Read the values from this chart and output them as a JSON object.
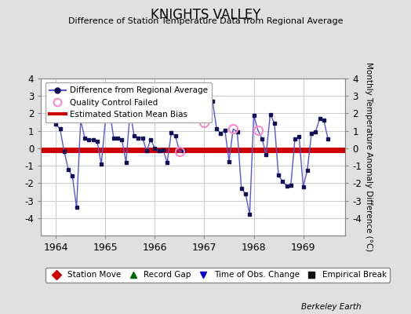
{
  "title": "KNIGHTS VALLEY",
  "subtitle": "Difference of Station Temperature Data from Regional Average",
  "ylabel": "Monthly Temperature Anomaly Difference (°C)",
  "xlabel_bottom": "Berkeley Earth",
  "xlim": [
    1963.7,
    1969.85
  ],
  "ylim": [
    -5,
    4
  ],
  "yticks": [
    -4,
    -3,
    -2,
    -1,
    0,
    1,
    2,
    3,
    4
  ],
  "xticks": [
    1964,
    1965,
    1966,
    1967,
    1968,
    1969
  ],
  "bias_value": -0.08,
  "line_color": "#5555dd",
  "dot_color": "#111155",
  "qc_color": "#ff88cc",
  "bias_color": "#cc0000",
  "bg_color": "#e0e0e0",
  "plot_bg_color": "#ffffff",
  "time_series": [
    1964.0,
    1964.083,
    1964.167,
    1964.25,
    1964.333,
    1964.417,
    1964.5,
    1964.583,
    1964.667,
    1964.75,
    1964.833,
    1964.917,
    1965.0,
    1965.083,
    1965.167,
    1965.25,
    1965.333,
    1965.417,
    1965.5,
    1965.583,
    1965.667,
    1965.75,
    1965.833,
    1965.917,
    1966.0,
    1966.083,
    1966.167,
    1966.25,
    1966.333,
    1966.417,
    1966.5,
    1966.583,
    1966.667,
    1966.75,
    1966.833,
    1966.917,
    1967.0,
    1967.083,
    1967.167,
    1967.25,
    1967.333,
    1967.417,
    1967.5,
    1967.583,
    1967.667,
    1967.75,
    1967.833,
    1967.917,
    1968.0,
    1968.083,
    1968.167,
    1968.25,
    1968.333,
    1968.417,
    1968.5,
    1968.583,
    1968.667,
    1968.75,
    1968.833,
    1968.917,
    1969.0,
    1969.083,
    1969.167,
    1969.25,
    1969.333,
    1969.417,
    1969.5
  ],
  "values": [
    1.4,
    1.1,
    -0.2,
    -1.2,
    -1.6,
    -3.4,
    1.6,
    0.6,
    0.5,
    0.5,
    0.4,
    -0.9,
    1.6,
    2.2,
    0.6,
    0.6,
    0.5,
    -0.8,
    2.1,
    0.7,
    0.6,
    0.6,
    -0.15,
    0.5,
    0.0,
    -0.15,
    -0.1,
    -0.8,
    0.9,
    0.7,
    -0.2,
    -0.15,
    null,
    null,
    null,
    null,
    1.5,
    1.8,
    2.7,
    1.1,
    0.85,
    1.05,
    -0.75,
    1.1,
    0.95,
    -2.3,
    -2.6,
    -3.8,
    1.9,
    1.05,
    0.55,
    -0.35,
    1.95,
    1.45,
    -1.55,
    -1.9,
    -2.15,
    -2.1,
    0.55,
    0.65,
    -2.2,
    -1.25,
    0.85,
    0.95,
    1.7,
    1.6,
    0.55
  ],
  "qc_failed_indices": [
    13,
    30,
    36,
    43,
    49
  ],
  "legend2_entries": [
    {
      "label": "Station Move",
      "color": "#cc0000",
      "marker": "D"
    },
    {
      "label": "Record Gap",
      "color": "#006600",
      "marker": "^"
    },
    {
      "label": "Time of Obs. Change",
      "color": "#0000cc",
      "marker": "v"
    },
    {
      "label": "Empirical Break",
      "color": "#111111",
      "marker": "s"
    }
  ]
}
